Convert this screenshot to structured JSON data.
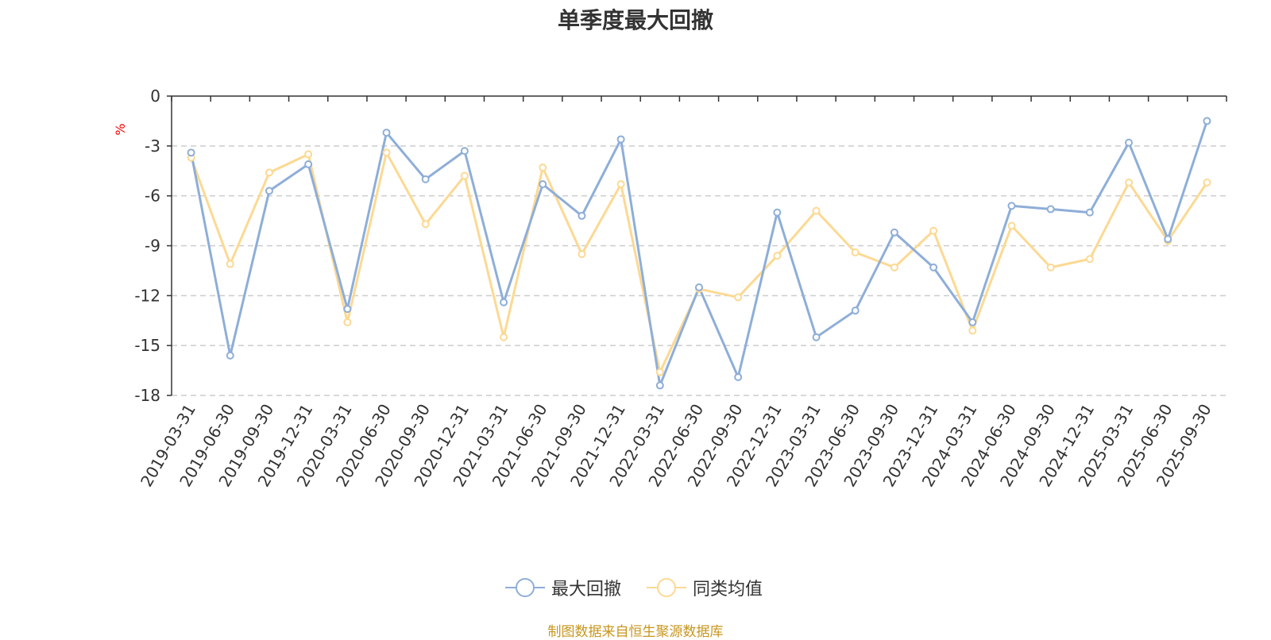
{
  "chart_data": {
    "type": "line",
    "title": "单季度最大回撤",
    "ylabel": "%",
    "ylim": [
      -18,
      0
    ],
    "yticks": [
      0,
      -3,
      -6,
      -9,
      -12,
      -15,
      -18
    ],
    "grid": true,
    "legend_position": "bottom",
    "categories": [
      "2019-03-31",
      "2019-06-30",
      "2019-09-30",
      "2019-12-31",
      "2020-03-31",
      "2020-06-30",
      "2020-09-30",
      "2020-12-31",
      "2021-03-31",
      "2021-06-30",
      "2021-09-30",
      "2021-12-31",
      "2022-03-31",
      "2022-06-30",
      "2022-09-30",
      "2022-12-31",
      "2023-03-31",
      "2023-06-30",
      "2023-09-30",
      "2023-12-31",
      "2024-03-31",
      "2024-06-30",
      "2024-09-30",
      "2024-12-31",
      "2025-03-31",
      "2025-06-30",
      "2025-09-30"
    ],
    "series": [
      {
        "name": "最大回撤",
        "color": "#8eaed8",
        "values": [
          -3.4,
          -15.6,
          -5.7,
          -4.1,
          -12.8,
          -2.2,
          -5.0,
          -3.3,
          -12.4,
          -5.3,
          -7.2,
          -2.6,
          -17.4,
          -11.5,
          -16.9,
          -7.0,
          -14.5,
          -12.9,
          -8.2,
          -10.3,
          -13.6,
          -6.6,
          -6.8,
          -7.0,
          -2.8,
          -8.6,
          -1.5
        ]
      },
      {
        "name": "同类均值",
        "color": "#fcd993",
        "values": [
          -3.7,
          -10.1,
          -4.6,
          -3.5,
          -13.6,
          -3.4,
          -7.7,
          -4.8,
          -14.5,
          -4.3,
          -9.5,
          -5.3,
          -16.6,
          -11.6,
          -12.1,
          -9.6,
          -6.9,
          -9.4,
          -10.3,
          -8.1,
          -14.1,
          -7.8,
          -10.3,
          -9.8,
          -5.2,
          -8.7,
          -5.2
        ]
      }
    ]
  },
  "footer": "制图数据来自恒生聚源数据库"
}
